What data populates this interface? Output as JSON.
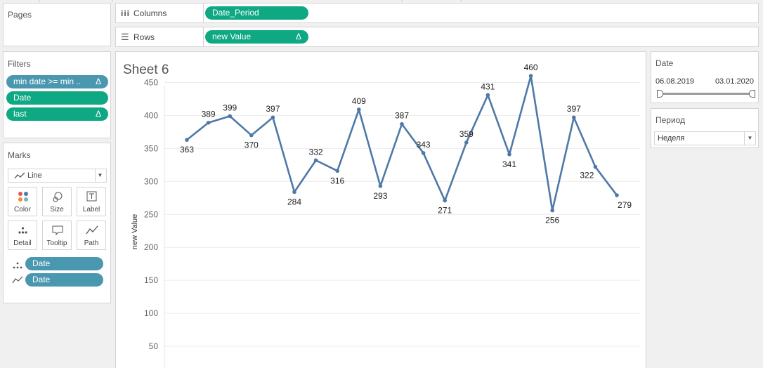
{
  "pages": {
    "title": "Pages"
  },
  "columns": {
    "label": "Columns",
    "pill": "Date_Period"
  },
  "rows": {
    "label": "Rows",
    "pill": "new Value",
    "pill_delta": "Δ"
  },
  "filters": {
    "title": "Filters",
    "items": [
      {
        "label": "min date >= min ..",
        "delta": "Δ",
        "color": "#4a97b0"
      },
      {
        "label": "Date",
        "delta": "",
        "color": "#0ea882"
      },
      {
        "label": "last",
        "delta": "Δ",
        "color": "#0ea882"
      }
    ]
  },
  "marks": {
    "title": "Marks",
    "type": "Line",
    "buttons": [
      "Color",
      "Size",
      "Label",
      "Detail",
      "Tooltip",
      "Path"
    ],
    "fields": [
      {
        "icon": "detail-icon",
        "label": "Date"
      },
      {
        "icon": "path-icon",
        "label": "Date"
      }
    ]
  },
  "sheet": {
    "title": "Sheet 6"
  },
  "date_filter": {
    "title": "Date",
    "start": "06.08.2019",
    "end": "03.01.2020"
  },
  "period_filter": {
    "title": "Период",
    "selected": "Неделя"
  },
  "colors": {
    "line": "#4e79a7",
    "green_pill": "#0ea882",
    "blue_pill": "#4a97b0"
  },
  "chart_data": {
    "type": "line",
    "ylabel": "new Value",
    "ylim": [
      0,
      475
    ],
    "yticks": [
      50,
      100,
      150,
      200,
      250,
      300,
      350,
      400,
      450
    ],
    "values": [
      363,
      389,
      399,
      370,
      397,
      284,
      332,
      316,
      409,
      293,
      387,
      343,
      271,
      359,
      431,
      341,
      460,
      256,
      397,
      322,
      279
    ],
    "label_pos": [
      "below",
      "above",
      "above",
      "below",
      "above",
      "below",
      "above",
      "below",
      "above",
      "below",
      "above",
      "above",
      "below",
      "above",
      "above",
      "below",
      "above",
      "below",
      "above",
      "left",
      "right"
    ],
    "grid": true
  }
}
